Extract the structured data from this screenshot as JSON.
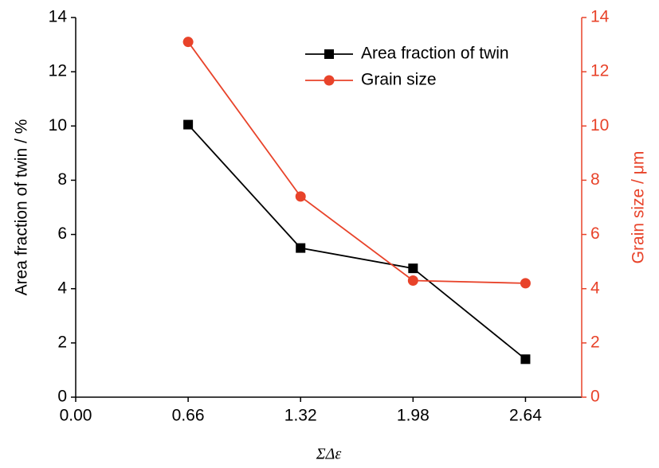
{
  "chart_data": {
    "type": "line",
    "x": [
      0.66,
      1.32,
      1.98,
      2.64
    ],
    "xlim": [
      0,
      2.97
    ],
    "xticks": [
      {
        "value": 0,
        "label": "0.00"
      },
      0.66,
      1.32,
      1.98,
      2.64
    ],
    "xlabel": "ΣΔε",
    "ylabel": "Area fraction of twin / %",
    "ylim": [
      0,
      14
    ],
    "yticks": [
      0,
      2,
      4,
      6,
      8,
      10,
      12,
      14
    ],
    "y2label": "Grain size / μm",
    "y2lim": [
      0,
      14
    ],
    "y2ticks": [
      0,
      2,
      4,
      6,
      8,
      10,
      12,
      14
    ],
    "y2color": "#e8432a",
    "legend": "upper right",
    "series": [
      {
        "name": "Area fraction of twin",
        "color": "#000000",
        "marker": "square",
        "values": [
          10.05,
          5.5,
          4.75,
          1.4
        ]
      },
      {
        "name": "Grain size",
        "color": "#e8432a",
        "marker": "circle",
        "axis": "y2",
        "values": [
          13.1,
          7.4,
          4.3,
          4.2
        ]
      }
    ]
  }
}
